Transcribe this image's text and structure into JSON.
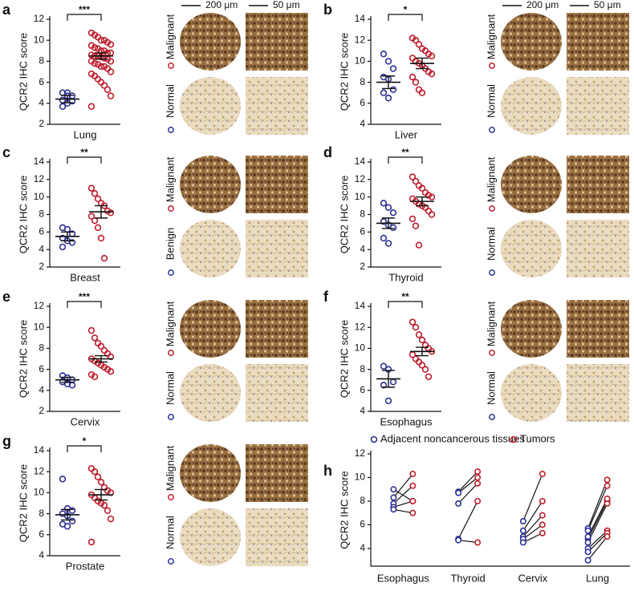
{
  "chart_data": [
    {
      "type": "strip",
      "panel": "a",
      "ylabel": "QCR2 IHC score",
      "xlabel": "Lung",
      "significance": "***",
      "scale_bars": [
        "200 μm",
        "50 μm"
      ],
      "ylim": [
        2,
        12
      ],
      "yticks": [
        2,
        4,
        6,
        8,
        10,
        12
      ],
      "series": [
        {
          "name": "Normal",
          "color": "#2e3192",
          "values": [
            5.0,
            5.0,
            4.7,
            4.3,
            4.0,
            4.2,
            3.7,
            4.7
          ],
          "mean": 4.4,
          "error": 0.35
        },
        {
          "name": "Malignant",
          "color": "#be1e2d",
          "values": [
            10.7,
            10.5,
            10.3,
            10.0,
            10.0,
            9.8,
            9.6,
            9.5,
            9.3,
            9.2,
            9.0,
            9.0,
            8.8,
            8.8,
            8.6,
            8.5,
            8.5,
            8.4,
            8.3,
            8.2,
            8.0,
            8.0,
            7.8,
            7.7,
            7.5,
            7.5,
            7.3,
            7.0,
            6.8,
            6.6,
            6.3,
            6.0,
            5.7,
            5.3,
            4.7,
            3.7
          ],
          "mean": 8.5,
          "error": 0.3
        }
      ]
    },
    {
      "type": "strip",
      "panel": "b",
      "ylabel": "QCR2 IHC score",
      "xlabel": "Liver",
      "significance": "*",
      "scale_bars": [
        "200 μm",
        "50 μm"
      ],
      "ylim": [
        4,
        14
      ],
      "yticks": [
        4,
        6,
        8,
        10,
        12,
        14
      ],
      "series": [
        {
          "name": "Normal",
          "color": "#2e3192",
          "values": [
            10.7,
            10.0,
            9.3,
            8.5,
            8.3,
            7.3,
            7.0,
            6.5
          ],
          "mean": 8.0,
          "error": 0.6
        },
        {
          "name": "Malignant",
          "color": "#be1e2d",
          "values": [
            12.2,
            12.0,
            11.6,
            11.2,
            11.0,
            10.7,
            10.5,
            10.3,
            10.0,
            9.8,
            9.6,
            9.3,
            9.0,
            8.8,
            8.5,
            8.0,
            7.3,
            7.0
          ],
          "mean": 9.8,
          "error": 0.5
        }
      ]
    },
    {
      "type": "strip",
      "panel": "c",
      "ylabel": "QCR2 IHC score",
      "xlabel": "Breast",
      "significance": "**",
      "ylim": [
        2,
        14
      ],
      "yticks": [
        2,
        4,
        6,
        8,
        10,
        12,
        14
      ],
      "series": [
        {
          "name": "Benign",
          "color": "#2e3192",
          "values": [
            6.5,
            6.3,
            5.8,
            5.3,
            5.0,
            4.8,
            4.3
          ],
          "mean": 5.5,
          "error": 0.5
        },
        {
          "name": "Malignant",
          "color": "#be1e2d",
          "values": [
            11.0,
            10.4,
            9.8,
            9.3,
            9.0,
            8.4,
            8.2,
            7.8,
            7.3,
            6.5,
            5.3,
            3.0
          ],
          "mean": 8.3,
          "error": 0.7
        }
      ]
    },
    {
      "type": "strip",
      "panel": "d",
      "ylabel": "QCR2 IHC score",
      "xlabel": "Thyroid",
      "significance": "**",
      "ylim": [
        2,
        14
      ],
      "yticks": [
        2,
        4,
        6,
        8,
        10,
        12,
        14
      ],
      "series": [
        {
          "name": "Normal",
          "color": "#2e3192",
          "values": [
            9.3,
            8.8,
            8.2,
            7.2,
            6.8,
            6.5,
            5.3,
            4.7
          ],
          "mean": 7.0,
          "error": 0.6
        },
        {
          "name": "Malignant",
          "color": "#be1e2d",
          "values": [
            12.3,
            11.8,
            11.3,
            11.0,
            10.5,
            10.2,
            10.0,
            9.8,
            9.5,
            9.2,
            9.0,
            8.8,
            8.4,
            8.0,
            7.5,
            6.7,
            4.5
          ],
          "mean": 9.5,
          "error": 0.5
        }
      ]
    },
    {
      "type": "strip",
      "panel": "e",
      "ylabel": "QCR2 IHC score",
      "xlabel": "Cervix",
      "significance": "***",
      "ylim": [
        2,
        12
      ],
      "yticks": [
        2,
        4,
        6,
        8,
        10,
        12
      ],
      "series": [
        {
          "name": "Normal",
          "color": "#2e3192",
          "values": [
            5.4,
            5.2,
            5.0,
            4.8,
            4.6,
            4.5
          ],
          "mean": 5.0,
          "error": 0.25
        },
        {
          "name": "Malignant",
          "color": "#be1e2d",
          "values": [
            9.7,
            9.0,
            8.5,
            8.2,
            7.8,
            7.5,
            7.2,
            7.0,
            6.8,
            6.6,
            6.4,
            6.2,
            6.0,
            5.8,
            5.5,
            5.3
          ],
          "mean": 7.0,
          "error": 0.3
        }
      ]
    },
    {
      "type": "strip",
      "panel": "f",
      "ylabel": "QCR2 IHC score",
      "xlabel": "Esophagus",
      "significance": "**",
      "ylim": [
        4,
        14
      ],
      "yticks": [
        4,
        6,
        8,
        10,
        12,
        14
      ],
      "series": [
        {
          "name": "Normal",
          "color": "#2e3192",
          "values": [
            8.3,
            8.0,
            6.8,
            6.5,
            5.0
          ],
          "mean": 7.1,
          "error": 0.8
        },
        {
          "name": "Malignant",
          "color": "#be1e2d",
          "values": [
            12.5,
            12.0,
            11.3,
            10.8,
            10.3,
            10.0,
            9.7,
            9.4,
            9.0,
            8.7,
            8.4,
            8.0,
            7.3
          ],
          "mean": 9.7,
          "error": 0.4
        }
      ]
    },
    {
      "type": "strip",
      "panel": "g",
      "ylabel": "QCR2 IHC score",
      "xlabel": "Prostate",
      "significance": "*",
      "ylim": [
        4,
        14
      ],
      "yticks": [
        4,
        6,
        8,
        10,
        12,
        14
      ],
      "series": [
        {
          "name": "Normal",
          "color": "#2e3192",
          "values": [
            11.3,
            8.5,
            8.3,
            8.0,
            7.8,
            7.3,
            7.0,
            6.8
          ],
          "mean": 7.9,
          "error": 0.5
        },
        {
          "name": "Malignant",
          "color": "#be1e2d",
          "values": [
            12.3,
            12.0,
            11.5,
            11.0,
            10.5,
            10.2,
            10.0,
            9.8,
            9.5,
            9.2,
            9.0,
            8.8,
            8.3,
            7.5,
            5.3
          ],
          "mean": 9.8,
          "error": 0.5
        }
      ]
    },
    {
      "type": "paired",
      "panel": "h",
      "ylabel": "QCR2 IHC score",
      "categories": [
        "Esophagus",
        "Thyroid",
        "Cervix",
        "Lung"
      ],
      "ylim": [
        2.5,
        12
      ],
      "yticks": [
        4,
        6,
        8,
        10,
        12
      ],
      "series": [
        {
          "name": "Adjacent noncancerous tissues",
          "color": "#2e3192",
          "values": [
            [
              8.3,
              7.8,
              7.5,
              7.3,
              9.0
            ],
            [
              8.8,
              8.7,
              7.8,
              4.8,
              4.7
            ],
            [
              6.3,
              5.5,
              5.0,
              4.8,
              4.5
            ],
            [
              5.7,
              5.5,
              4.8,
              4.5,
              4.0,
              3.7,
              3.0,
              5.0
            ]
          ]
        },
        {
          "name": "Tumors",
          "color": "#be1e2d",
          "values": [
            [
              10.3,
              9.3,
              8.0,
              7.0,
              8.0
            ],
            [
              10.5,
              10.0,
              9.5,
              8.0,
              4.5
            ],
            [
              10.3,
              8.0,
              6.8,
              6.0,
              5.3
            ],
            [
              9.8,
              9.3,
              8.0,
              7.8,
              5.5,
              5.3,
              5.0,
              8.2
            ]
          ]
        }
      ]
    }
  ]
}
